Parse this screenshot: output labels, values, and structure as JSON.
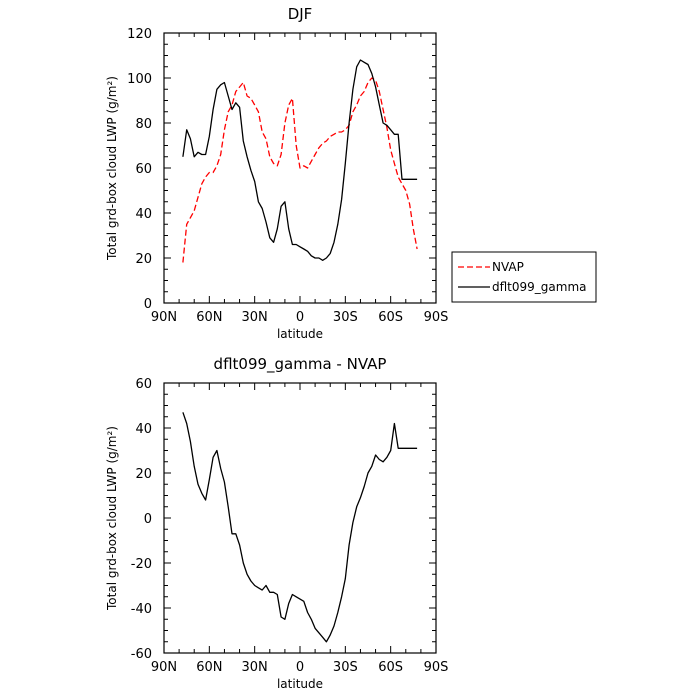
{
  "chart_data": [
    {
      "type": "line",
      "title": "DJF",
      "xlabel": "latitude",
      "ylabel": "Total grd-box cloud LWP (g/m²)",
      "x_ticks": [
        {
          "value": -90,
          "label": "90N"
        },
        {
          "value": -60,
          "label": "60N"
        },
        {
          "value": -30,
          "label": "30N"
        },
        {
          "value": 0,
          "label": "0"
        },
        {
          "value": 30,
          "label": "30S"
        },
        {
          "value": 60,
          "label": "60S"
        },
        {
          "value": 90,
          "label": "90S"
        }
      ],
      "y_ticks": [
        0,
        20,
        40,
        60,
        80,
        100,
        120
      ],
      "xlim": [
        -90,
        90
      ],
      "ylim": [
        0,
        120
      ],
      "legend": {
        "placement": "right-outside"
      },
      "series": [
        {
          "name": "NVAP",
          "color": "#ff0000",
          "dash": "dashed",
          "x": [
            -77.5,
            -75,
            -70,
            -67.5,
            -65,
            -62.5,
            -60,
            -57.5,
            -55,
            -52.5,
            -50,
            -47.5,
            -45,
            -42.5,
            -40,
            -37.5,
            -35,
            -32.5,
            -30,
            -27.5,
            -25,
            -22.5,
            -20,
            -17.5,
            -15,
            -12.5,
            -10,
            -7.5,
            -5,
            -2.5,
            0,
            2.5,
            5,
            7.5,
            10,
            12.5,
            15,
            17.5,
            20,
            22.5,
            25,
            27.5,
            30,
            32.5,
            35,
            37.5,
            40,
            42.5,
            45,
            47.5,
            50,
            52.5,
            55,
            57.5,
            60,
            62.5,
            65,
            67.5,
            70,
            72.5,
            75,
            77.5
          ],
          "y": [
            18,
            35,
            41,
            47,
            53,
            56,
            58,
            58,
            61,
            66,
            77,
            85,
            88,
            94,
            96,
            98,
            92,
            91,
            88,
            85,
            76,
            73,
            65,
            62,
            61,
            66,
            80,
            88,
            91,
            70,
            60,
            61,
            60,
            63,
            66,
            69,
            71,
            72,
            74,
            75,
            76,
            76,
            77,
            79,
            85,
            88,
            92,
            94,
            98,
            100,
            99,
            94,
            86,
            78,
            68,
            62,
            56,
            53,
            50,
            44,
            33,
            24
          ]
        },
        {
          "name": "dflt099_gamma",
          "color": "#000000",
          "dash": "solid",
          "x": [
            -77.5,
            -75,
            -72.5,
            -70,
            -67.5,
            -65,
            -62.5,
            -60,
            -57.5,
            -55,
            -52.5,
            -50,
            -47.5,
            -45,
            -42.5,
            -40,
            -37.5,
            -35,
            -32.5,
            -30,
            -27.5,
            -25,
            -22.5,
            -20,
            -17.5,
            -15,
            -12.5,
            -10,
            -7.5,
            -5,
            -2.5,
            0,
            2.5,
            5,
            7.5,
            10,
            12.5,
            15,
            17.5,
            20,
            22.5,
            25,
            27.5,
            30,
            32.5,
            35,
            37.5,
            40,
            42.5,
            45,
            47.5,
            50,
            52.5,
            55,
            57.5,
            60,
            62.5,
            65,
            67.5,
            70,
            72.5,
            75,
            77.5
          ],
          "y": [
            65,
            77,
            73,
            65,
            67,
            66,
            66,
            74,
            86,
            95,
            97,
            98,
            92,
            86,
            89,
            87,
            72,
            65,
            59,
            54,
            45,
            42,
            36,
            29,
            27,
            33,
            43,
            45,
            33,
            26,
            26,
            25,
            24,
            23,
            21,
            20,
            20,
            19,
            20,
            22,
            27,
            35,
            46,
            62,
            80,
            95,
            105,
            108,
            107,
            106,
            102,
            96,
            88,
            80,
            79,
            77,
            75,
            75,
            55,
            55,
            55,
            55,
            55
          ]
        }
      ]
    },
    {
      "type": "line",
      "title": "dflt099_gamma - NVAP",
      "xlabel": "latitude",
      "ylabel": "Total grd-box cloud LWP (g/m²)",
      "x_ticks": [
        {
          "value": -90,
          "label": "90N"
        },
        {
          "value": -60,
          "label": "60N"
        },
        {
          "value": -30,
          "label": "30N"
        },
        {
          "value": 0,
          "label": "0"
        },
        {
          "value": 30,
          "label": "30S"
        },
        {
          "value": 60,
          "label": "60S"
        },
        {
          "value": 90,
          "label": "90S"
        }
      ],
      "y_ticks": [
        -60,
        -40,
        -20,
        0,
        20,
        40,
        60
      ],
      "xlim": [
        -90,
        90
      ],
      "ylim": [
        -60,
        60
      ],
      "series": [
        {
          "color": "#000000",
          "dash": "solid",
          "x": [
            -77.5,
            -75,
            -72.5,
            -70,
            -67.5,
            -65,
            -62.5,
            -60,
            -57.5,
            -55,
            -52.5,
            -50,
            -47.5,
            -45,
            -42.5,
            -40,
            -37.5,
            -35,
            -32.5,
            -30,
            -27.5,
            -25,
            -22.5,
            -20,
            -17.5,
            -15,
            -12.5,
            -10,
            -7.5,
            -5,
            -2.5,
            0,
            2.5,
            5,
            7.5,
            10,
            12.5,
            15,
            17.5,
            20,
            22.5,
            25,
            27.5,
            30,
            32.5,
            35,
            37.5,
            40,
            42.5,
            45,
            47.5,
            50,
            52.5,
            55,
            57.5,
            60,
            62.5,
            65,
            67.5,
            70,
            72.5,
            75,
            77.5
          ],
          "y": [
            47,
            42,
            34,
            23,
            15,
            11,
            8,
            17,
            27,
            30,
            22,
            16,
            5,
            -7,
            -7,
            -12,
            -20,
            -25,
            -28,
            -30,
            -31,
            -32,
            -30,
            -33,
            -33,
            -34,
            -44,
            -45,
            -38,
            -34,
            -35,
            -36,
            -37,
            -42,
            -45,
            -49,
            -51,
            -53,
            -55,
            -52,
            -48,
            -42,
            -35,
            -27,
            -12,
            -2,
            5,
            9,
            14,
            20,
            23,
            28,
            26,
            25,
            27,
            30,
            42,
            31,
            31,
            31,
            31,
            31,
            31
          ]
        }
      ]
    }
  ]
}
